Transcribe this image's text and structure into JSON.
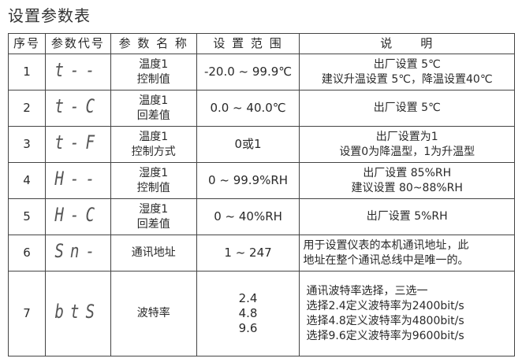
{
  "title": "设置参数表",
  "headers": [
    "序号",
    "参数代号",
    "参 数 名 称",
    "设 置 范 围",
    "说　　明"
  ],
  "rows": [
    {
      "no": "1",
      "code": "t--",
      "name": [
        "温度1",
        "控制值"
      ],
      "range": [
        "-20.0 ~ 99.9℃"
      ],
      "desc": [
        "出厂设置 5℃",
        "建议升温设置 5℃，降温设置40℃"
      ]
    },
    {
      "no": "2",
      "code": "t-C",
      "name": [
        "温度1",
        "回差值"
      ],
      "range": [
        "0.0 ~ 40.0℃"
      ],
      "desc": [
        "出厂设置 5℃"
      ]
    },
    {
      "no": "3",
      "code": "t-F",
      "name": [
        "温度1",
        "控制方式"
      ],
      "range": [
        "0或1"
      ],
      "desc": [
        "出厂设置为1",
        "设置0为降温型，1为升温型"
      ]
    },
    {
      "no": "4",
      "code": "H--",
      "name": [
        "湿度1",
        "控制值"
      ],
      "range": [
        "0 ~ 99.9%RH"
      ],
      "desc": [
        "出厂设置 85%RH",
        "建议设置 80~88%RH"
      ]
    },
    {
      "no": "5",
      "code": "H-C",
      "name": [
        "湿度1",
        "回差值"
      ],
      "range": [
        "0 ~ 40%RH"
      ],
      "desc": [
        "出厂设置 5%RH"
      ]
    },
    {
      "no": "6",
      "code": "Sn-",
      "name": [
        "通讯地址"
      ],
      "range": [
        "1 ~ 247"
      ],
      "desc": [
        "用于设置仪表的本机通讯地址，此",
        "地址在整个通讯总线中是唯一的。"
      ]
    },
    {
      "no": "7",
      "code": "btS",
      "name": [
        "波特率"
      ],
      "range": [
        "2.4",
        "4.8",
        "9.6"
      ],
      "desc": [
        "通讯波特率选择，三选一",
        "选择2.4定义波特率为2400bit/s",
        "选择4.8定义波特率为4800bit/s",
        "选择9.6定义波特率为9600bit/s"
      ]
    }
  ]
}
